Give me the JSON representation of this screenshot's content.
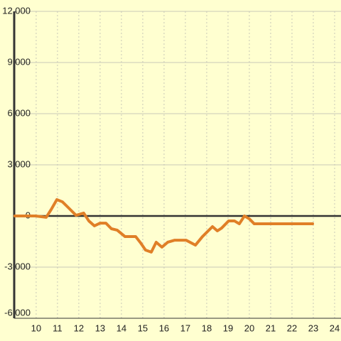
{
  "chart_data": {
    "type": "line",
    "x": [
      9,
      9.97,
      10.47,
      10.7,
      10.97,
      11.23,
      11.5,
      11.87,
      12.23,
      12.47,
      12.73,
      13.0,
      13.27,
      13.53,
      13.8,
      14.17,
      14.67,
      14.9,
      15.13,
      15.4,
      15.63,
      15.9,
      16.17,
      16.5,
      17.03,
      17.47,
      17.8,
      18.27,
      18.5,
      18.7,
      19.03,
      19.3,
      19.53,
      19.77,
      20.0,
      20.23,
      22.97
    ],
    "series": [
      {
        "color": "#e07f27",
        "values": [
          0,
          0,
          -80,
          370,
          960,
          830,
          500,
          40,
          170,
          -290,
          -580,
          -420,
          -420,
          -750,
          -830,
          -1210,
          -1210,
          -1580,
          -2000,
          -2120,
          -1540,
          -1830,
          -1540,
          -1420,
          -1420,
          -1710,
          -1210,
          -625,
          -875,
          -710,
          -290,
          -290,
          -460,
          0,
          -170,
          -460,
          -460
        ]
      }
    ],
    "xlim": [
      8.97,
      24.3
    ],
    "xticks": [
      10,
      11,
      12,
      13,
      14,
      15,
      16,
      17,
      18,
      19,
      20,
      21,
      22,
      23,
      24
    ],
    "ylim": [
      -6000,
      12000
    ],
    "yticks": [
      {
        "value": -6000,
        "label": "-6,000"
      },
      {
        "value": -3000,
        "label": "-3,000"
      },
      0,
      {
        "value": 3000,
        "label": "3,000"
      },
      {
        "value": 6000,
        "label": "6,000"
      },
      {
        "value": 9000,
        "label": "9,000"
      },
      {
        "value": 12000,
        "label": "12,000"
      }
    ],
    "grid": true
  }
}
